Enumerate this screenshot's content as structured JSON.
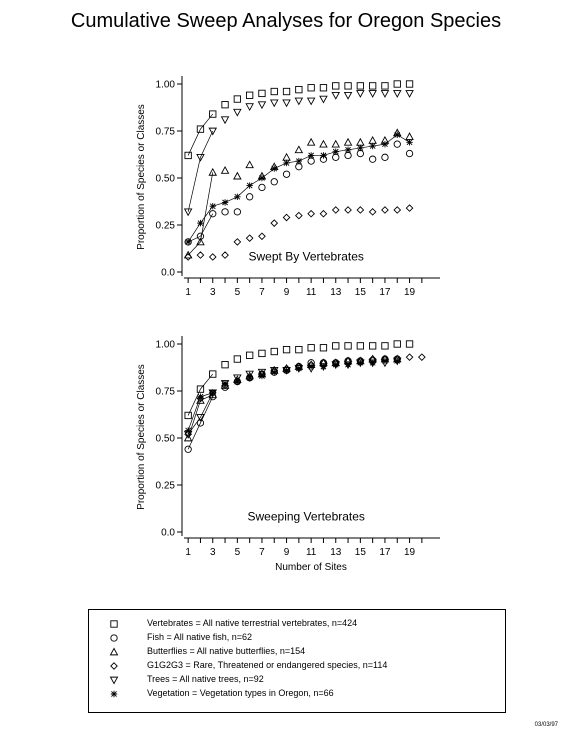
{
  "title": "Cumulative Sweep Analyses for Oregon Species",
  "footnote": "03/03/97",
  "legend": [
    {
      "marker": "square",
      "text": "Vertebrates = All native terrestrial vertebrates, n=424"
    },
    {
      "marker": "circle",
      "text": "Fish = All native fish, n=62"
    },
    {
      "marker": "triangle",
      "text": "Butterflies = All native butterflies, n=154"
    },
    {
      "marker": "diamond",
      "text": "G1G2G3 = Rare, Threatened or endangered species, n=114"
    },
    {
      "marker": "down-triangle",
      "text": "Trees = All native trees, n=92"
    },
    {
      "marker": "asterisk",
      "text": "Vegetation = Vegetation types in Oregon, n=66"
    }
  ],
  "chart_data": [
    {
      "type": "line",
      "panel_label": "Swept By Vertebrates",
      "xlabel": "",
      "ylabel": "Proportion of Species or Classes",
      "xticks": [
        1,
        3,
        5,
        7,
        9,
        11,
        13,
        15,
        17,
        19
      ],
      "yticks": [
        "0.0",
        "0.25",
        "0.50",
        "0.75",
        "1.00"
      ],
      "xlim": [
        0.5,
        20.5
      ],
      "ylim": [
        0,
        1
      ],
      "series": [
        {
          "name": "Vertebrates",
          "marker": "square",
          "line_points": 3,
          "x": [
            1,
            2,
            3,
            4,
            5,
            6,
            7,
            8,
            9,
            10,
            11,
            12,
            13,
            14,
            15,
            16,
            17,
            18,
            19
          ],
          "values": [
            0.62,
            0.76,
            0.84,
            0.89,
            0.92,
            0.94,
            0.95,
            0.96,
            0.96,
            0.97,
            0.98,
            0.98,
            0.99,
            0.99,
            0.99,
            0.99,
            0.99,
            1.0,
            1.0
          ]
        },
        {
          "name": "Fish",
          "marker": "circle",
          "line_points": 3,
          "x": [
            1,
            2,
            3,
            4,
            5,
            6,
            7,
            8,
            9,
            10,
            11,
            12,
            13,
            14,
            15,
            16,
            17,
            18,
            19
          ],
          "values": [
            0.16,
            0.19,
            0.31,
            0.32,
            0.32,
            0.4,
            0.45,
            0.48,
            0.52,
            0.56,
            0.59,
            0.6,
            0.61,
            0.62,
            0.63,
            0.6,
            0.61,
            0.68,
            0.63
          ]
        },
        {
          "name": "Butterflies",
          "marker": "triangle",
          "line_points": 3,
          "x": [
            1,
            2,
            3,
            4,
            5,
            6,
            7,
            8,
            9,
            10,
            11,
            12,
            13,
            14,
            15,
            16,
            17,
            18,
            19
          ],
          "values": [
            0.09,
            0.16,
            0.53,
            0.54,
            0.51,
            0.57,
            0.51,
            0.56,
            0.61,
            0.65,
            0.69,
            0.68,
            0.68,
            0.69,
            0.69,
            0.7,
            0.7,
            0.74,
            0.72
          ]
        },
        {
          "name": "G1G2G3",
          "marker": "diamond",
          "line_points": 0,
          "x": [
            1,
            2,
            3,
            4,
            5,
            6,
            7,
            8,
            9,
            10,
            11,
            12,
            13,
            14,
            15,
            16,
            17,
            18,
            19
          ],
          "values": [
            0.08,
            0.09,
            0.08,
            0.09,
            0.16,
            0.18,
            0.19,
            0.26,
            0.29,
            0.3,
            0.31,
            0.31,
            0.33,
            0.33,
            0.33,
            0.32,
            0.33,
            0.33,
            0.34
          ]
        },
        {
          "name": "Trees",
          "marker": "down-triangle",
          "line_points": 3,
          "x": [
            1,
            2,
            3,
            4,
            5,
            6,
            7,
            8,
            9,
            10,
            11,
            12,
            13,
            14,
            15,
            16,
            17,
            18,
            19
          ],
          "values": [
            0.32,
            0.61,
            0.75,
            0.81,
            0.85,
            0.88,
            0.89,
            0.9,
            0.9,
            0.91,
            0.91,
            0.92,
            0.94,
            0.94,
            0.95,
            0.95,
            0.95,
            0.95,
            0.95
          ]
        },
        {
          "name": "Vegetation",
          "marker": "asterisk",
          "line_points": 19,
          "x": [
            1,
            2,
            3,
            4,
            5,
            6,
            7,
            8,
            9,
            10,
            11,
            12,
            13,
            14,
            15,
            16,
            17,
            18,
            19
          ],
          "values": [
            0.16,
            0.26,
            0.35,
            0.37,
            0.4,
            0.46,
            0.5,
            0.55,
            0.58,
            0.59,
            0.62,
            0.62,
            0.64,
            0.65,
            0.66,
            0.67,
            0.68,
            0.73,
            0.69
          ]
        }
      ]
    },
    {
      "type": "line",
      "panel_label": "Sweeping  Vertebrates",
      "xlabel": "Number of Sites",
      "ylabel": "Proportion of Species or Classes",
      "xticks": [
        1,
        3,
        5,
        7,
        9,
        11,
        13,
        15,
        17,
        19
      ],
      "yticks": [
        "0.0",
        "0.25",
        "0.50",
        "0.75",
        "1.00"
      ],
      "xlim": [
        0.5,
        20.5
      ],
      "ylim": [
        0,
        1
      ],
      "series": [
        {
          "name": "Vertebrates",
          "marker": "square",
          "line_points": 3,
          "x": [
            1,
            2,
            3,
            4,
            5,
            6,
            7,
            8,
            9,
            10,
            11,
            12,
            13,
            14,
            15,
            16,
            17,
            18,
            19
          ],
          "values": [
            0.62,
            0.76,
            0.84,
            0.89,
            0.92,
            0.94,
            0.95,
            0.96,
            0.97,
            0.97,
            0.98,
            0.98,
            0.99,
            0.99,
            0.99,
            0.99,
            0.99,
            1.0,
            1.0
          ]
        },
        {
          "name": "Fish",
          "marker": "circle",
          "line_points": 3,
          "x": [
            1,
            2,
            3,
            4,
            5,
            6,
            7,
            8,
            9,
            10,
            11,
            12,
            13,
            14,
            15,
            16,
            17,
            18
          ],
          "values": [
            0.44,
            0.58,
            0.72,
            0.77,
            0.8,
            0.82,
            0.84,
            0.85,
            0.86,
            0.88,
            0.9,
            0.9,
            0.9,
            0.91,
            0.91,
            0.91,
            0.92,
            0.92
          ]
        },
        {
          "name": "Butterflies",
          "marker": "triangle",
          "line_points": 3,
          "x": [
            1,
            2,
            3,
            4,
            5,
            6,
            7,
            8,
            9,
            10,
            11,
            12,
            13,
            14,
            15,
            16,
            17,
            18
          ],
          "values": [
            0.5,
            0.7,
            0.73,
            0.78,
            0.81,
            0.83,
            0.84,
            0.86,
            0.87,
            0.88,
            0.89,
            0.9,
            0.9,
            0.91,
            0.91,
            0.92,
            0.92,
            0.92
          ]
        },
        {
          "name": "G1G2G3",
          "marker": "diamond",
          "line_points": 0,
          "x": [
            1,
            2,
            3,
            4,
            5,
            6,
            7,
            8,
            9,
            10,
            11,
            12,
            13,
            14,
            15,
            16,
            17,
            18,
            19,
            20
          ],
          "values": [
            0.52,
            0.71,
            0.74,
            0.78,
            0.8,
            0.82,
            0.84,
            0.86,
            0.87,
            0.88,
            0.89,
            0.9,
            0.9,
            0.91,
            0.91,
            0.92,
            0.92,
            0.92,
            0.93,
            0.93
          ]
        },
        {
          "name": "Trees",
          "marker": "down-triangle",
          "line_points": 3,
          "x": [
            1,
            2,
            3,
            4,
            5,
            6,
            7,
            8,
            9,
            10,
            11,
            12,
            13,
            14,
            15,
            16,
            17,
            18
          ],
          "values": [
            0.52,
            0.61,
            0.74,
            0.79,
            0.82,
            0.84,
            0.85,
            0.86,
            0.86,
            0.87,
            0.87,
            0.88,
            0.89,
            0.89,
            0.9,
            0.9,
            0.9,
            0.91
          ]
        },
        {
          "name": "Vegetation",
          "marker": "asterisk",
          "line_points": 3,
          "x": [
            1,
            2,
            3,
            4,
            5,
            6,
            7,
            8,
            9,
            10,
            11,
            12,
            13,
            14,
            15,
            16,
            17,
            18
          ],
          "values": [
            0.54,
            0.72,
            0.74,
            0.79,
            0.8,
            0.82,
            0.83,
            0.85,
            0.86,
            0.87,
            0.88,
            0.88,
            0.89,
            0.89,
            0.9,
            0.9,
            0.91,
            0.91
          ]
        }
      ]
    }
  ]
}
